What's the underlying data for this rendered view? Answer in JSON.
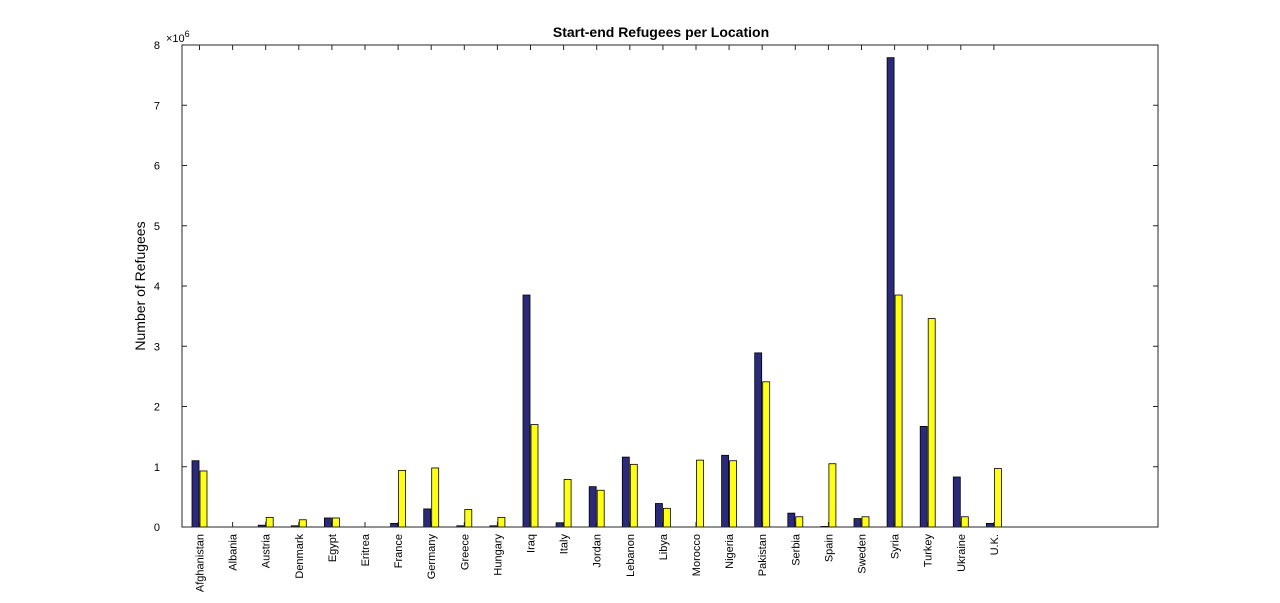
{
  "chart_data": {
    "type": "bar",
    "title": "Start-end Refugees per Location",
    "xlabel": "",
    "ylabel": "Number of Refugees",
    "y_exponent_base": "×10",
    "y_exponent_power": "6",
    "ylim": [
      0,
      8
    ],
    "yticks": [
      0,
      1,
      2,
      3,
      4,
      5,
      6,
      7,
      8
    ],
    "grid": false,
    "categories": [
      "Afghanistan",
      "Albania",
      "Austria",
      "Denmark",
      "Egypt",
      "Eritrea",
      "France",
      "Germany",
      "Greece",
      "Hungary",
      "Iraq",
      "Italy",
      "Jordan",
      "Lebanon",
      "Libya",
      "Morocco",
      "Nigeria",
      "Pakistan",
      "Serbia",
      "Spain",
      "Sweden",
      "Syria",
      "Turkey",
      "Ukraine",
      "U.K."
    ],
    "series": [
      {
        "color": "#2b2a7a",
        "values": [
          1.1,
          0.0,
          0.03,
          0.02,
          0.15,
          0.0,
          0.06,
          0.3,
          0.02,
          0.02,
          3.85,
          0.07,
          0.67,
          1.16,
          0.39,
          0.0,
          1.19,
          2.89,
          0.23,
          0.01,
          0.14,
          7.79,
          1.67,
          0.83,
          0.06
        ]
      },
      {
        "color": "#ffff14",
        "values": [
          0.93,
          0.0,
          0.16,
          0.12,
          0.15,
          0.0,
          0.94,
          0.98,
          0.29,
          0.16,
          1.7,
          0.79,
          0.61,
          1.04,
          0.31,
          1.11,
          1.1,
          2.41,
          0.17,
          1.05,
          0.17,
          3.85,
          3.46,
          0.17,
          0.97
        ]
      }
    ]
  }
}
